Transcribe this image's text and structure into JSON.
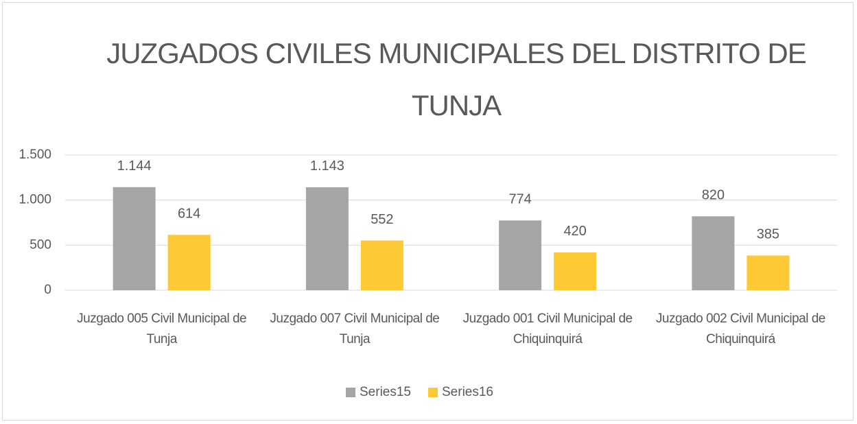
{
  "chart_data": {
    "type": "bar",
    "title": "JUZGADOS CIVILES MUNICIPALES DEL DISTRITO DE TUNJA",
    "categories": [
      "Juzgado 005 Civil Municipal de Tunja",
      "Juzgado 007 Civil Municipal de Tunja",
      "Juzgado 001 Civil Municipal de Chiquinquirá",
      "Juzgado 002 Civil Municipal de Chiquinquirá"
    ],
    "series": [
      {
        "name": "Series15",
        "color": "#a5a5a5",
        "values": [
          1144,
          1143,
          774,
          820
        ],
        "value_labels": [
          "1.144",
          "1.143",
          "774",
          "820"
        ]
      },
      {
        "name": "Series16",
        "color": "#fdc934",
        "values": [
          614,
          552,
          420,
          385
        ]
      }
    ],
    "ylim": [
      0,
      1500
    ],
    "yticks": [
      0,
      500,
      {
        "value": 1000,
        "label": "1.000"
      },
      {
        "value": 1500,
        "label": "1.500"
      }
    ],
    "grid": true,
    "legend": "bottom"
  }
}
